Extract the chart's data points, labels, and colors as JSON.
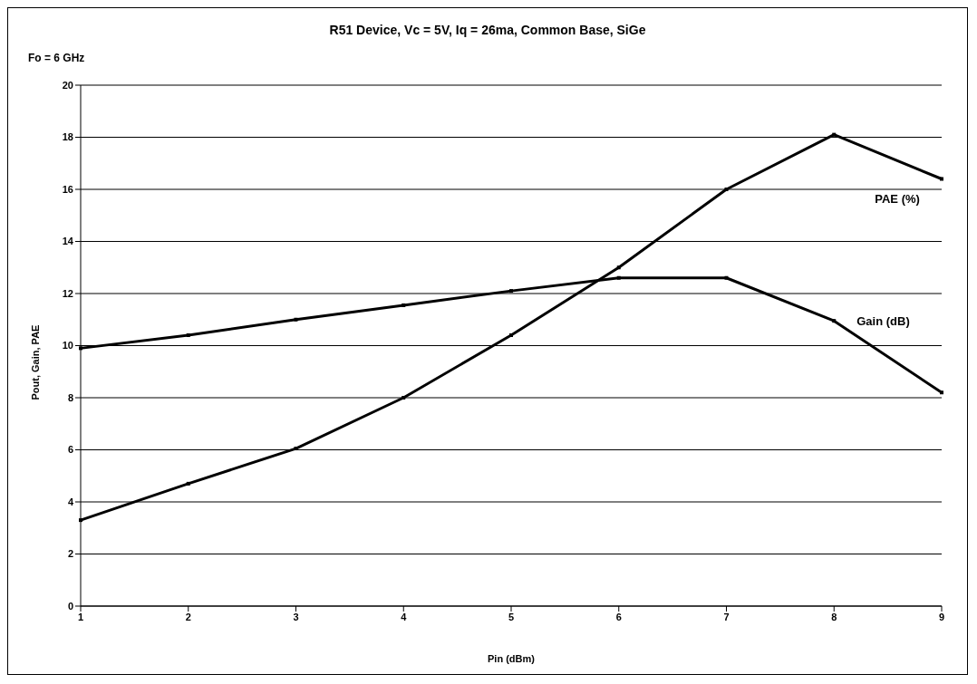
{
  "chart_data": {
    "type": "line",
    "title": "R51 Device, Vc = 5V, Iq = 26ma, Common Base, SiGe",
    "xlabel": "Pin (dBm)",
    "ylabel": "Pout, Gain, PAE",
    "annotations": [
      "Fo = 6 GHz"
    ],
    "categories": [
      "1",
      "2",
      "3",
      "4",
      "5",
      "6",
      "7",
      "8",
      "9"
    ],
    "series": [
      {
        "name": "PAE (%)",
        "color": "#000000",
        "values": [
          3.3,
          4.7,
          6.05,
          8.0,
          10.4,
          13.0,
          16.0,
          18.1,
          16.4
        ]
      },
      {
        "name": "Gain (dB)",
        "color": "#000000",
        "values": [
          9.9,
          10.4,
          11.0,
          11.55,
          12.1,
          12.6,
          12.6,
          10.95,
          8.2
        ]
      }
    ],
    "ylim": [
      0,
      20
    ],
    "yticks": [
      0,
      2,
      4,
      6,
      8,
      10,
      12,
      14,
      16,
      18,
      20
    ],
    "grid": "y",
    "legend": false,
    "marker": "square",
    "line_style": "solid"
  }
}
